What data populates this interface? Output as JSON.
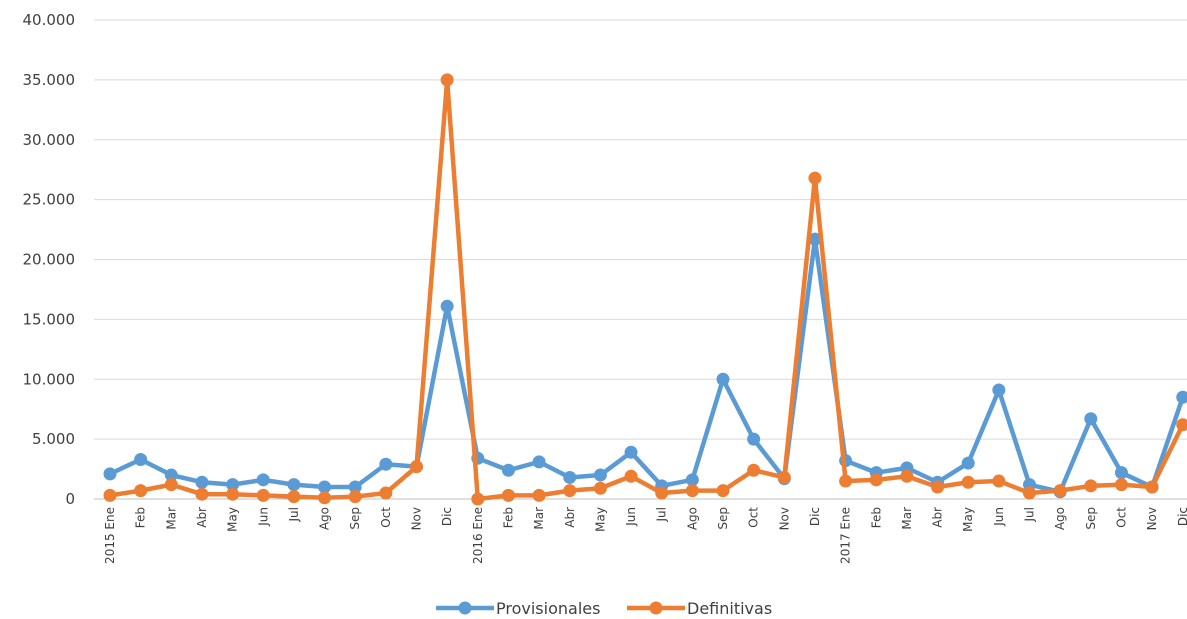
{
  "chart_data": {
    "type": "line",
    "title": "",
    "xlabel": "",
    "ylabel": "",
    "ylim": [
      0,
      40000
    ],
    "y_ticks": [
      "0",
      "5.000",
      "10.000",
      "15.000",
      "20.000",
      "25.000",
      "30.000",
      "35.000",
      "40.000"
    ],
    "grid": true,
    "legend_position": "bottom",
    "year_labels": {
      "0": "2015",
      "12": "2016",
      "24": "2017"
    },
    "categories": [
      "Ene",
      "Feb",
      "Mar",
      "Abr",
      "May",
      "Jun",
      "Jul",
      "Ago",
      "Sep",
      "Oct",
      "Nov",
      "Dic",
      "Ene",
      "Feb",
      "Mar",
      "Abr",
      "May",
      "Jun",
      "Jul",
      "Ago",
      "Sep",
      "Oct",
      "Nov",
      "Dic",
      "Ene",
      "Feb",
      "Mar",
      "Abr",
      "May",
      "Jun",
      "Jul",
      "Ago",
      "Sep",
      "Oct",
      "Nov",
      "Dic"
    ],
    "series": [
      {
        "name": "Provisionales",
        "color": "#5b9bd5",
        "values": [
          2100,
          3300,
          2000,
          1400,
          1200,
          1600,
          1200,
          1000,
          1000,
          2900,
          2700,
          16100,
          3400,
          2400,
          3100,
          1800,
          2000,
          3900,
          1100,
          1600,
          10000,
          5000,
          1700,
          21700,
          3200,
          2200,
          2600,
          1400,
          3000,
          9100,
          1200,
          600,
          6700,
          2200,
          1000,
          8500
        ]
      },
      {
        "name": "Definitivas",
        "color": "#ed7d31",
        "values": [
          300,
          700,
          1200,
          400,
          400,
          300,
          200,
          100,
          200,
          500,
          2700,
          35000,
          0,
          300,
          300,
          700,
          900,
          1900,
          500,
          700,
          700,
          2400,
          1800,
          26800,
          1500,
          1600,
          1900,
          1000,
          1400,
          1500,
          500,
          700,
          1100,
          1200,
          1000,
          6200
        ]
      }
    ]
  }
}
